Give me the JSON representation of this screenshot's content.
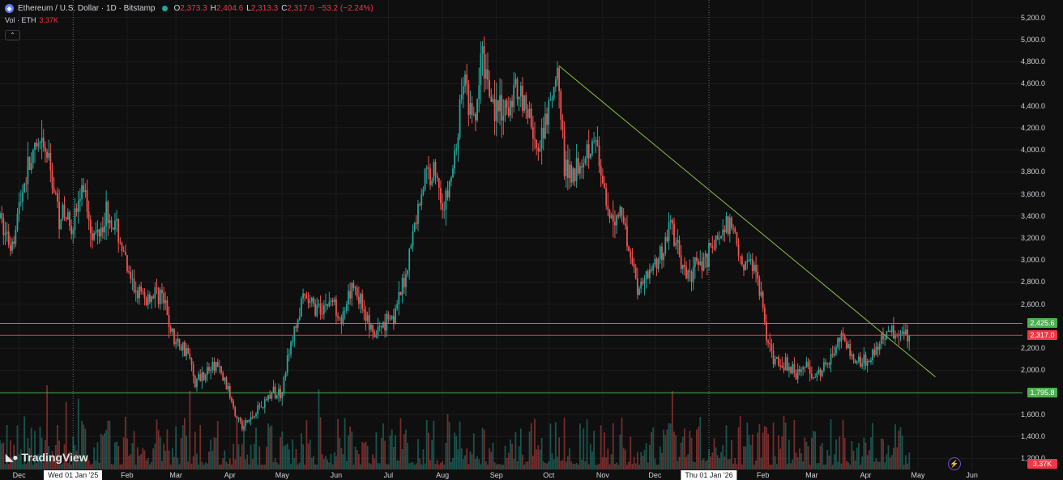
{
  "header": {
    "symbol_icon": "ethereum-icon",
    "title": "Ethereum / U.S. Dollar · 1D · Bitstamp",
    "open_label": "O",
    "open": "2,373.3",
    "high_label": "H",
    "high": "2,404.6",
    "low_label": "L",
    "low": "2,313.3",
    "close_label": "C",
    "close": "2,317.0",
    "change": "−53.2 (−2.24%)",
    "vol_label": "Vol · ETH",
    "vol_value": "3.37K"
  },
  "brand": "TradingView",
  "colors": {
    "up": "#26a69a",
    "down": "#ef5350",
    "background": "#0f0f0f",
    "trendline": "#8bc34a",
    "level": "#4caf50",
    "last_price": "#f23645"
  },
  "chart_data": {
    "type": "candlestick",
    "x_range": [
      "2024-11-20",
      "2026-06-30"
    ],
    "y_range": [
      1100,
      5300
    ],
    "y_ticks": [
      "5,200.0",
      "5,000.0",
      "4,800.0",
      "4,600.0",
      "4,400.0",
      "4,200.0",
      "4,000.0",
      "3,800.0",
      "3,600.0",
      "3,400.0",
      "3,200.0",
      "3,000.0",
      "2,800.0",
      "2,600.0",
      "2,200.0",
      "2,000.0",
      "1,600.0",
      "1,400.0",
      "1,200.0"
    ],
    "y_tick_values": [
      5200,
      5000,
      4800,
      4600,
      4400,
      4200,
      4000,
      3800,
      3600,
      3400,
      3200,
      3000,
      2800,
      2600,
      2200,
      2000,
      1600,
      1400,
      1200
    ],
    "x_ticks": [
      "Dec",
      "Feb",
      "Mar",
      "Apr",
      "May",
      "Jun",
      "Jul",
      "Aug",
      "Sep",
      "Oct",
      "Nov",
      "Dec",
      "Feb",
      "Mar",
      "Apr",
      "May",
      "Jun"
    ],
    "x_tick_dates": [
      "2024-12-01",
      "2025-02-01",
      "2025-03-01",
      "2025-04-01",
      "2025-05-01",
      "2025-06-01",
      "2025-07-01",
      "2025-08-01",
      "2025-09-01",
      "2025-10-01",
      "2025-11-01",
      "2025-12-01",
      "2026-02-01",
      "2026-03-01",
      "2026-04-01",
      "2026-05-01",
      "2026-06-01"
    ],
    "crosshair_labels": [
      {
        "date": "2025-01-01",
        "label": "Wed 01 Jan '25"
      },
      {
        "date": "2026-01-01",
        "label": "Thu 01 Jan '26"
      }
    ],
    "horizontal_lines": [
      {
        "value": 2425.6,
        "label": "2,425.6",
        "color": "#4caf50"
      },
      {
        "value": 2317.0,
        "label": "2,317.0",
        "color": "#f23645"
      },
      {
        "value": 1795.8,
        "label": "1,795.8",
        "color": "#4caf50"
      }
    ],
    "trendline": {
      "from": {
        "date": "2025-10-07",
        "value": 4760
      },
      "to": {
        "date": "2026-05-11",
        "value": 1940
      }
    },
    "volume_last": "3.37K",
    "price_path": [
      [
        "2024-11-20",
        3380
      ],
      [
        "2024-11-26",
        3120
      ],
      [
        "2024-12-05",
        3780
      ],
      [
        "2024-12-12",
        4020
      ],
      [
        "2024-12-17",
        3950
      ],
      [
        "2024-12-24",
        3420
      ],
      [
        "2025-01-01",
        3350
      ],
      [
        "2025-01-07",
        3660
      ],
      [
        "2025-01-13",
        3190
      ],
      [
        "2025-01-20",
        3450
      ],
      [
        "2025-01-27",
        3240
      ],
      [
        "2025-02-03",
        2780
      ],
      [
        "2025-02-11",
        2640
      ],
      [
        "2025-02-20",
        2720
      ],
      [
        "2025-02-28",
        2260
      ],
      [
        "2025-03-07",
        2200
      ],
      [
        "2025-03-12",
        1900
      ],
      [
        "2025-03-24",
        2060
      ],
      [
        "2025-03-31",
        1820
      ],
      [
        "2025-04-08",
        1470
      ],
      [
        "2025-04-15",
        1610
      ],
      [
        "2025-04-24",
        1780
      ],
      [
        "2025-04-30",
        1800
      ],
      [
        "2025-05-08",
        2350
      ],
      [
        "2025-05-13",
        2640
      ],
      [
        "2025-05-21",
        2560
      ],
      [
        "2025-05-30",
        2630
      ],
      [
        "2025-06-05",
        2460
      ],
      [
        "2025-06-11",
        2780
      ],
      [
        "2025-06-18",
        2520
      ],
      [
        "2025-06-22",
        2280
      ],
      [
        "2025-06-30",
        2480
      ],
      [
        "2025-07-05",
        2520
      ],
      [
        "2025-07-10",
        2800
      ],
      [
        "2025-07-17",
        3400
      ],
      [
        "2025-07-22",
        3750
      ],
      [
        "2025-07-28",
        3820
      ],
      [
        "2025-08-02",
        3450
      ],
      [
        "2025-08-08",
        3900
      ],
      [
        "2025-08-13",
        4650
      ],
      [
        "2025-08-19",
        4180
      ],
      [
        "2025-08-24",
        4850
      ],
      [
        "2025-08-31",
        4380
      ],
      [
        "2025-09-07",
        4300
      ],
      [
        "2025-09-13",
        4620
      ],
      [
        "2025-09-22",
        4180
      ],
      [
        "2025-09-25",
        3900
      ],
      [
        "2025-10-01",
        4350
      ],
      [
        "2025-10-07",
        4680
      ],
      [
        "2025-10-10",
        3800
      ],
      [
        "2025-10-17",
        3850
      ],
      [
        "2025-10-27",
        4150
      ],
      [
        "2025-11-04",
        3350
      ],
      [
        "2025-11-12",
        3450
      ],
      [
        "2025-11-21",
        2750
      ],
      [
        "2025-11-30",
        2950
      ],
      [
        "2025-12-06",
        3100
      ],
      [
        "2025-12-10",
        3350
      ],
      [
        "2025-12-18",
        2850
      ],
      [
        "2025-12-26",
        2950
      ],
      [
        "2026-01-06",
        3200
      ],
      [
        "2026-01-14",
        3350
      ],
      [
        "2026-01-20",
        2980
      ],
      [
        "2026-01-28",
        2950
      ],
      [
        "2026-02-05",
        2150
      ],
      [
        "2026-02-10",
        2080
      ],
      [
        "2026-02-20",
        1980
      ],
      [
        "2026-02-26",
        2040
      ],
      [
        "2026-03-04",
        1950
      ],
      [
        "2026-03-10",
        2050
      ],
      [
        "2026-03-17",
        2320
      ],
      [
        "2026-03-24",
        2120
      ],
      [
        "2026-04-01",
        2080
      ],
      [
        "2026-04-08",
        2220
      ],
      [
        "2026-04-14",
        2380
      ],
      [
        "2026-04-20",
        2350
      ],
      [
        "2026-04-26",
        2317
      ]
    ]
  }
}
